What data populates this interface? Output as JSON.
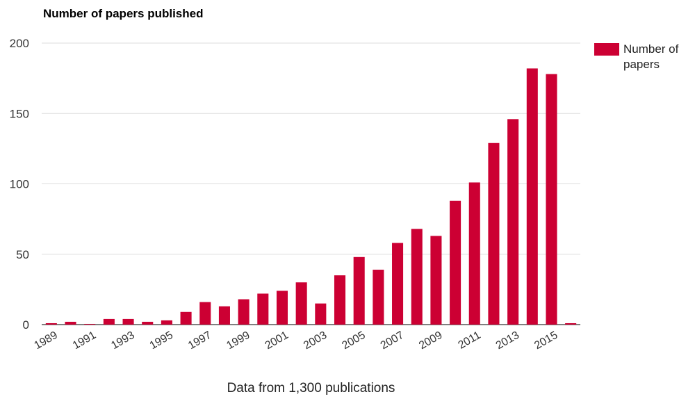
{
  "chart_data": {
    "type": "bar",
    "title": "Number of papers published",
    "categories": [
      "1989",
      "1990",
      "1991",
      "1992",
      "1993",
      "1994",
      "1995",
      "1996",
      "1997",
      "1998",
      "1999",
      "2000",
      "2001",
      "2002",
      "2003",
      "2004",
      "2005",
      "2006",
      "2007",
      "2008",
      "2009",
      "2010",
      "2011",
      "2012",
      "2013",
      "2014",
      "2015",
      "2016"
    ],
    "series": [
      {
        "name": "Number of papers",
        "color": "#cc0033",
        "values": [
          1,
          2,
          0.5,
          4,
          4,
          2,
          3,
          9,
          16,
          13,
          18,
          22,
          24,
          30,
          15,
          35,
          48,
          39,
          58,
          68,
          63,
          88,
          101,
          129,
          146,
          182,
          178,
          1
        ]
      }
    ],
    "ylim": [
      0,
      200
    ],
    "yticks": [
      0,
      50,
      100,
      150,
      200
    ],
    "xtick_labels": [
      "1989",
      "1991",
      "1993",
      "1995",
      "1997",
      "1999",
      "2001",
      "2003",
      "2005",
      "2007",
      "2009",
      "2011",
      "2013",
      "2015"
    ],
    "xlabel": "",
    "ylabel": "",
    "grid": true,
    "legend_position": "right",
    "caption": "Data from 1,300 publications"
  }
}
